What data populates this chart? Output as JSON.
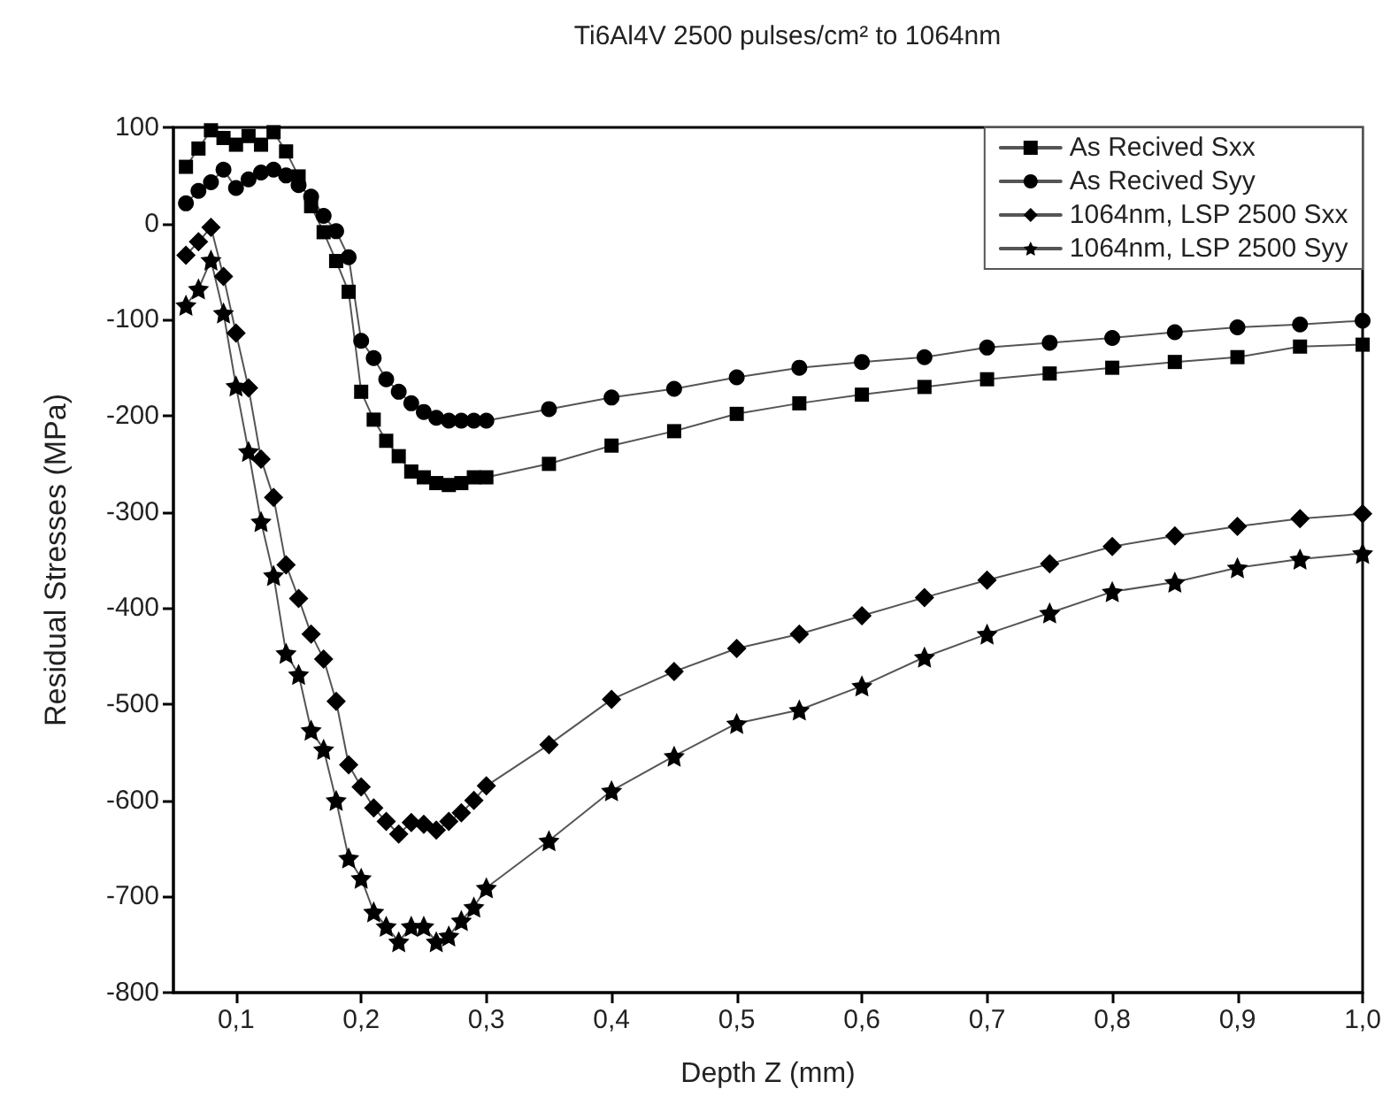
{
  "chart_data": {
    "type": "line",
    "title": "Ti6Al4V 2500 pulses/cm² to 1064nm",
    "xlabel": "Depth Z (mm)",
    "ylabel": "Residual Stresses (MPa)",
    "x": [
      0.06,
      0.07,
      0.08,
      0.09,
      0.1,
      0.11,
      0.12,
      0.13,
      0.14,
      0.15,
      0.16,
      0.17,
      0.18,
      0.19,
      0.2,
      0.21,
      0.22,
      0.23,
      0.24,
      0.25,
      0.26,
      0.27,
      0.28,
      0.29,
      0.3,
      0.35,
      0.4,
      0.45,
      0.5,
      0.55,
      0.6,
      0.65,
      0.7,
      0.75,
      0.8,
      0.85,
      0.9,
      0.95,
      1.0
    ],
    "series": [
      {
        "name": "As Recived Sxx",
        "color": "#000000",
        "marker": "square",
        "values": [
          59,
          78,
          97,
          89,
          82,
          91,
          82,
          95,
          75,
          49,
          18,
          -9,
          -39,
          -71,
          -175,
          -204,
          -226,
          -242,
          -258,
          -264,
          -270,
          -272,
          -270,
          -264,
          -264,
          -250,
          -231,
          -216,
          -198,
          -187,
          -178,
          -170,
          -162,
          -156,
          -150,
          -144,
          -139,
          -128,
          -126
        ]
      },
      {
        "name": "As Recived Syy",
        "color": "#000000",
        "marker": "circle",
        "values": [
          21,
          34,
          43,
          56,
          37,
          46,
          53,
          56,
          50,
          40,
          28,
          8,
          -8,
          -35,
          -122,
          -140,
          -162,
          -175,
          -187,
          -196,
          -202,
          -205,
          -205,
          -205,
          -205,
          -193,
          -181,
          -172,
          -160,
          -150,
          -144,
          -139,
          -129,
          -124,
          -119,
          -113,
          -108,
          -105,
          -101
        ]
      },
      {
        "name": "1064nm, LSP 2500 Sxx",
        "color": "#000000",
        "marker": "diamond",
        "values": [
          -33,
          -19,
          -4,
          -55,
          -114,
          -171,
          -245,
          -285,
          -355,
          -390,
          -427,
          -453,
          -497,
          -563,
          -586,
          -608,
          -622,
          -635,
          -623,
          -625,
          -631,
          -622,
          -613,
          -600,
          -585,
          -542,
          -495,
          -466,
          -442,
          -427,
          -408,
          -389,
          -371,
          -354,
          -336,
          -325,
          -315,
          -307,
          -302
        ]
      },
      {
        "name": "1064nm, LSP 2500 Syy",
        "color": "#000000",
        "marker": "star",
        "values": [
          -85,
          -68,
          -38,
          -93,
          -169,
          -237,
          -310,
          -366,
          -447,
          -469,
          -527,
          -547,
          -600,
          -660,
          -681,
          -716,
          -731,
          -747,
          -731,
          -731,
          -747,
          -741,
          -725,
          -711,
          -691,
          -642,
          -590,
          -554,
          -520,
          -506,
          -481,
          -451,
          -427,
          -405,
          -383,
          -373,
          -358,
          -349,
          -343
        ]
      }
    ],
    "xlim": [
      0.05,
      1.0
    ],
    "xticks": [
      {
        "value": 0.1,
        "label": "0,1"
      },
      {
        "value": 0.2,
        "label": "0,2"
      },
      {
        "value": 0.3,
        "label": "0,3"
      },
      {
        "value": 0.4,
        "label": "0,4"
      },
      {
        "value": 0.5,
        "label": "0,5"
      },
      {
        "value": 0.6,
        "label": "0,6"
      },
      {
        "value": 0.7,
        "label": "0,7"
      },
      {
        "value": 0.8,
        "label": "0,8"
      },
      {
        "value": 0.9,
        "label": "0,9"
      },
      {
        "value": 1.0,
        "label": "1,0"
      }
    ],
    "ylim": [
      -800,
      100
    ],
    "yticks": [
      -800,
      -700,
      -600,
      -500,
      -400,
      -300,
      -200,
      -100,
      0,
      100
    ],
    "grid": false,
    "legend": "top right",
    "line_style": "solid"
  }
}
